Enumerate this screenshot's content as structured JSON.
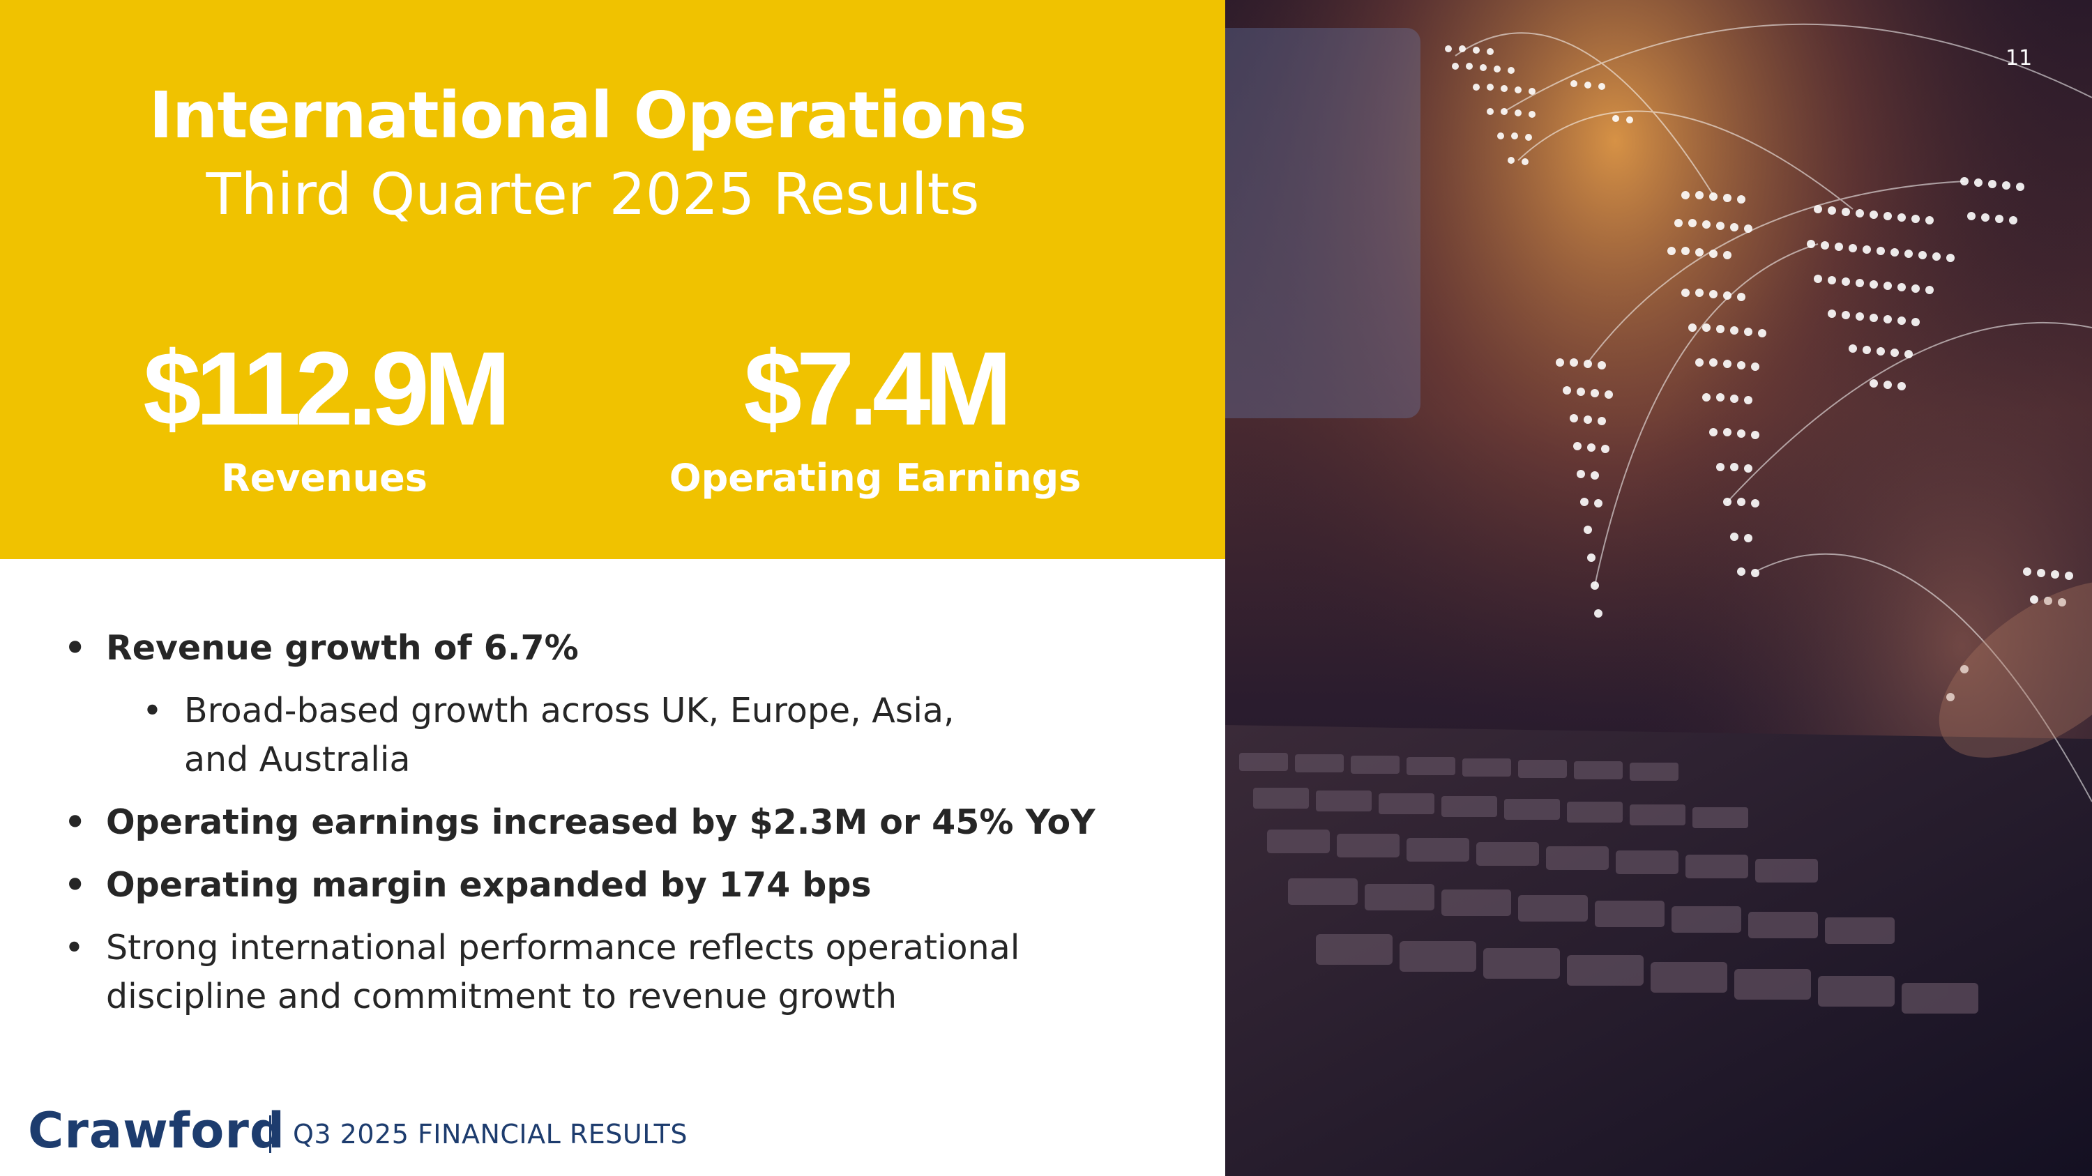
{
  "slide": {
    "title": "International Operations",
    "subtitle": "Third Quarter 2025 Results",
    "page_number": "11"
  },
  "metrics": [
    {
      "value": "$112.9M",
      "label": "Revenues"
    },
    {
      "value": "$7.4M",
      "label": "Operating Earnings"
    }
  ],
  "bullets": [
    {
      "text": "Revenue growth of 6.7%",
      "level": 1,
      "bold": true
    },
    {
      "text": "Broad-based growth across UK, Europe, Asia, and Australia",
      "level": 2,
      "bold": false
    },
    {
      "text": "Operating earnings increased by $2.3M or 45% YoY",
      "level": 1,
      "bold": true
    },
    {
      "text": "Operating margin expanded by 174 bps",
      "level": 1,
      "bold": true
    },
    {
      "text": "Strong international performance reflects operational discipline and commitment to revenue growth",
      "level": 1,
      "bold": false
    }
  ],
  "footer": {
    "brand": "Crawford",
    "text": "Q3 2025 FINANCIAL RESULTS"
  },
  "colors": {
    "accent_yellow": "#f0c200",
    "brand_navy": "#1d3c6e",
    "body_text": "#262626"
  },
  "image": {
    "icon": "laptop-world-map-photo"
  }
}
